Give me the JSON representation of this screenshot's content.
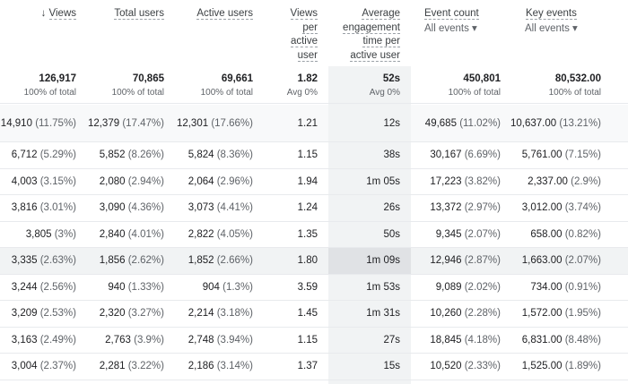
{
  "headers": [
    {
      "label": "Views",
      "sort": "arrow-down-icon"
    },
    {
      "label": "Total users"
    },
    {
      "label": "Active users"
    },
    {
      "label_lines": [
        "Views",
        "per",
        "active",
        "user"
      ]
    },
    {
      "label_lines": [
        "Average",
        "engagement",
        "time per",
        "active user"
      ]
    },
    {
      "label": "Event count",
      "filter": "All events"
    },
    {
      "label": "Key events",
      "filter": "All events"
    }
  ],
  "totals": [
    {
      "value": "126,917",
      "sub": "100% of total"
    },
    {
      "value": "70,865",
      "sub": "100% of total"
    },
    {
      "value": "69,661",
      "sub": "100% of total"
    },
    {
      "value": "1.82",
      "sub": "Avg 0%"
    },
    {
      "value": "52s",
      "sub": "Avg 0%"
    },
    {
      "value": "450,801",
      "sub": "100% of total"
    },
    {
      "value": "80,532.00",
      "sub": "100% of total"
    }
  ],
  "rows": [
    [
      [
        "14,910",
        "(11.75%)"
      ],
      [
        "12,379",
        "(17.47%)"
      ],
      [
        "12,301",
        "(17.66%)"
      ],
      [
        "1.21",
        ""
      ],
      [
        "12s",
        ""
      ],
      [
        "49,685",
        "(11.02%)"
      ],
      [
        "10,637.00",
        "(13.21%)"
      ]
    ],
    [
      [
        "6,712",
        "(5.29%)"
      ],
      [
        "5,852",
        "(8.26%)"
      ],
      [
        "5,824",
        "(8.36%)"
      ],
      [
        "1.15",
        ""
      ],
      [
        "38s",
        ""
      ],
      [
        "30,167",
        "(6.69%)"
      ],
      [
        "5,761.00",
        "(7.15%)"
      ]
    ],
    [
      [
        "4,003",
        "(3.15%)"
      ],
      [
        "2,080",
        "(2.94%)"
      ],
      [
        "2,064",
        "(2.96%)"
      ],
      [
        "1.94",
        ""
      ],
      [
        "1m 05s",
        ""
      ],
      [
        "17,223",
        "(3.82%)"
      ],
      [
        "2,337.00",
        "(2.9%)"
      ]
    ],
    [
      [
        "3,816",
        "(3.01%)"
      ],
      [
        "3,090",
        "(4.36%)"
      ],
      [
        "3,073",
        "(4.41%)"
      ],
      [
        "1.24",
        ""
      ],
      [
        "26s",
        ""
      ],
      [
        "13,372",
        "(2.97%)"
      ],
      [
        "3,012.00",
        "(3.74%)"
      ]
    ],
    [
      [
        "3,805",
        "(3%)"
      ],
      [
        "2,840",
        "(4.01%)"
      ],
      [
        "2,822",
        "(4.05%)"
      ],
      [
        "1.35",
        ""
      ],
      [
        "50s",
        ""
      ],
      [
        "9,345",
        "(2.07%)"
      ],
      [
        "658.00",
        "(0.82%)"
      ]
    ],
    [
      [
        "3,335",
        "(2.63%)"
      ],
      [
        "1,856",
        "(2.62%)"
      ],
      [
        "1,852",
        "(2.66%)"
      ],
      [
        "1.80",
        ""
      ],
      [
        "1m 09s",
        ""
      ],
      [
        "12,946",
        "(2.87%)"
      ],
      [
        "1,663.00",
        "(2.07%)"
      ]
    ],
    [
      [
        "3,244",
        "(2.56%)"
      ],
      [
        "940",
        "(1.33%)"
      ],
      [
        "904",
        "(1.3%)"
      ],
      [
        "3.59",
        ""
      ],
      [
        "1m 53s",
        ""
      ],
      [
        "9,089",
        "(2.02%)"
      ],
      [
        "734.00",
        "(0.91%)"
      ]
    ],
    [
      [
        "3,209",
        "(2.53%)"
      ],
      [
        "2,320",
        "(3.27%)"
      ],
      [
        "2,214",
        "(3.18%)"
      ],
      [
        "1.45",
        ""
      ],
      [
        "1m 31s",
        ""
      ],
      [
        "10,260",
        "(2.28%)"
      ],
      [
        "1,572.00",
        "(1.95%)"
      ]
    ],
    [
      [
        "3,163",
        "(2.49%)"
      ],
      [
        "2,763",
        "(3.9%)"
      ],
      [
        "2,748",
        "(3.94%)"
      ],
      [
        "1.15",
        ""
      ],
      [
        "27s",
        ""
      ],
      [
        "18,845",
        "(4.18%)"
      ],
      [
        "6,831.00",
        "(8.48%)"
      ]
    ],
    [
      [
        "3,004",
        "(2.37%)"
      ],
      [
        "2,281",
        "(3.22%)"
      ],
      [
        "2,186",
        "(3.14%)"
      ],
      [
        "1.37",
        ""
      ],
      [
        "15s",
        ""
      ],
      [
        "10,520",
        "(2.33%)"
      ],
      [
        "1,525.00",
        "(1.89%)"
      ]
    ]
  ]
}
